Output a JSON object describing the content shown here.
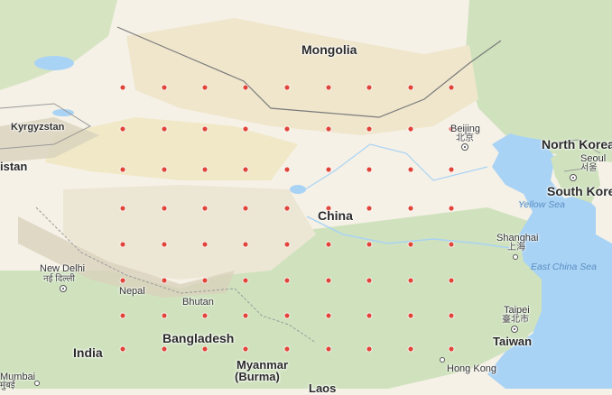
{
  "map": {
    "markers": {
      "rows": [
        [
          136,
          182,
          227,
          272,
          318,
          364,
          409,
          455,
          500
        ],
        [
          136,
          182,
          227,
          272,
          318,
          364,
          409,
          455,
          500
        ],
        [
          136,
          182,
          227,
          272,
          318,
          364,
          409,
          455,
          500
        ],
        [
          136,
          182,
          227,
          272,
          318,
          364,
          409,
          455,
          500
        ],
        [
          136,
          182,
          227,
          272,
          318,
          364,
          409,
          455,
          500
        ],
        [
          136,
          182,
          227,
          272,
          318,
          364,
          409,
          455,
          500
        ],
        [
          136,
          182,
          227,
          272,
          318,
          364,
          409,
          455,
          500
        ],
        [
          136,
          182,
          227,
          272,
          318,
          364,
          409,
          455,
          500
        ]
      ],
      "color": "#e0453a"
    },
    "colors": {
      "land": "#f5f1e6",
      "desert": "#efe6cc",
      "vegetation": "#cfe2bd",
      "water": "#a9d3f5",
      "border": "#7a7a7a",
      "mountain": "#d9d2bd"
    },
    "countries": {
      "mongolia": "Mongolia",
      "china": "China",
      "north_korea": "North Korea",
      "south_korea": "South Korea",
      "taiwan": "Taiwan",
      "kyrgyzstan": "Kyrgyzstan",
      "istan": "istan",
      "nepal": "Nepal",
      "bhutan": "Bhutan",
      "bangladesh": "Bangladesh",
      "myanmar": "Myanmar",
      "burma": "(Burma)",
      "india": "India",
      "laos": "Laos"
    },
    "cities": {
      "beijing": "Beijing",
      "beijing_cn": "北京",
      "seoul": "Seoul",
      "seoul_kr": "서울",
      "shanghai": "Shanghai",
      "shanghai_cn": "上海",
      "taipei": "Taipei",
      "taipei_cn": "臺北市",
      "hong_kong": "Hong Kong",
      "new_delhi": "New Delhi",
      "new_delhi_hi": "नई दिल्ली",
      "mumbai": "Mumbai",
      "mumbai_mr": "मुंबई"
    },
    "seas": {
      "yellow_sea": "Yellow Sea",
      "east_china_sea": "East China Sea"
    }
  }
}
